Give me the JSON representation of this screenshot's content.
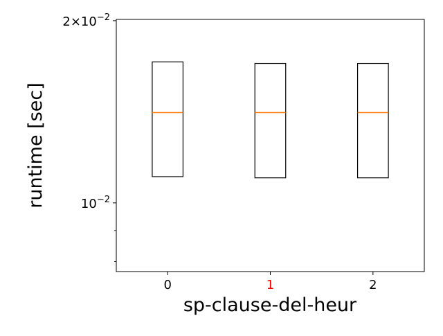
{
  "chart_data": {
    "type": "box",
    "title": "",
    "xlabel": "sp-clause-del-heur",
    "ylabel": "runtime [sec]",
    "yscale": "log",
    "ylim": [
      0.0077,
      0.0201
    ],
    "y_ticks": [
      {
        "value": 0.02,
        "mantissa": "2",
        "base": "10",
        "exponent": "−2"
      },
      {
        "value": 0.01,
        "mantissa": "",
        "base": "10",
        "exponent": "−2"
      }
    ],
    "y_minor_ticks": [
      0.008,
      0.009
    ],
    "categories": [
      "0",
      "1",
      "2"
    ],
    "highlighted_category": "1",
    "highlight_color": "#ff0000",
    "median_color": "#ff7f0e",
    "series": [
      {
        "category": "0",
        "q1": 0.01105,
        "median": 0.0141,
        "q3": 0.0171
      },
      {
        "category": "1",
        "q1": 0.011,
        "median": 0.0141,
        "q3": 0.017
      },
      {
        "category": "2",
        "q1": 0.011,
        "median": 0.0141,
        "q3": 0.017
      }
    ],
    "grid": false,
    "legend": "none"
  }
}
